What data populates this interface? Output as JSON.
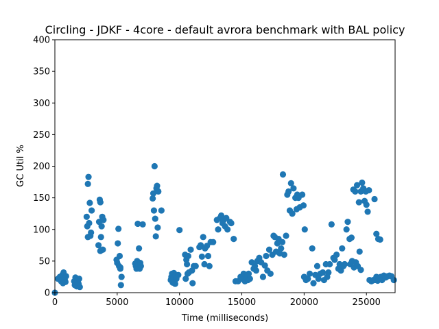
{
  "chart_data": {
    "type": "scatter",
    "title": "Circling - JDKF - 4core -  default avrora benchmark with BAL policy",
    "xlabel": "Time (milliseconds)",
    "ylabel": "GC Util %",
    "xlim": [
      0,
      27300
    ],
    "ylim": [
      0,
      400
    ],
    "xticks": [
      0,
      5000,
      10000,
      15000,
      20000,
      25000
    ],
    "yticks": [
      0,
      50,
      100,
      150,
      200,
      250,
      300,
      350,
      400
    ],
    "xtick_labels": [
      "0",
      "5000",
      "10000",
      "15000",
      "20000",
      "25000"
    ],
    "ytick_labels": [
      "0",
      "50",
      "100",
      "150",
      "200",
      "250",
      "300",
      "350",
      "400"
    ],
    "grid": false,
    "marker_color": "#1f77b4",
    "points": [
      [
        0,
        0
      ],
      [
        250,
        22
      ],
      [
        400,
        25
      ],
      [
        500,
        18
      ],
      [
        600,
        28
      ],
      [
        650,
        15
      ],
      [
        700,
        32
      ],
      [
        750,
        22
      ],
      [
        800,
        20
      ],
      [
        850,
        17
      ],
      [
        900,
        26
      ],
      [
        1550,
        18
      ],
      [
        1600,
        12
      ],
      [
        1650,
        24
      ],
      [
        1700,
        15
      ],
      [
        1750,
        10
      ],
      [
        1800,
        20
      ],
      [
        1850,
        17
      ],
      [
        1900,
        14
      ],
      [
        1950,
        22
      ],
      [
        2000,
        9
      ],
      [
        2550,
        120
      ],
      [
        2600,
        105
      ],
      [
        2650,
        172
      ],
      [
        2700,
        183
      ],
      [
        2750,
        110
      ],
      [
        2800,
        142
      ],
      [
        2850,
        90
      ],
      [
        2900,
        95
      ],
      [
        2950,
        130
      ],
      [
        2650,
        88
      ],
      [
        3500,
        75
      ],
      [
        3550,
        112
      ],
      [
        3600,
        147
      ],
      [
        3650,
        143
      ],
      [
        3700,
        88
      ],
      [
        3750,
        105
      ],
      [
        3800,
        120
      ],
      [
        3850,
        68
      ],
      [
        3900,
        115
      ],
      [
        3650,
        66
      ],
      [
        4950,
        52
      ],
      [
        5000,
        47
      ],
      [
        5050,
        78
      ],
      [
        5100,
        101
      ],
      [
        5150,
        42
      ],
      [
        5200,
        58
      ],
      [
        5250,
        38
      ],
      [
        5300,
        12
      ],
      [
        5350,
        25
      ],
      [
        5250,
        40
      ],
      [
        6450,
        46
      ],
      [
        6500,
        42
      ],
      [
        6550,
        38
      ],
      [
        6600,
        50
      ],
      [
        6650,
        109
      ],
      [
        6700,
        45
      ],
      [
        6750,
        70
      ],
      [
        6800,
        38
      ],
      [
        6850,
        47
      ],
      [
        6900,
        42
      ],
      [
        7050,
        108
      ],
      [
        7850,
        149
      ],
      [
        7900,
        157
      ],
      [
        7950,
        130
      ],
      [
        8000,
        200
      ],
      [
        8050,
        117
      ],
      [
        8100,
        89
      ],
      [
        8150,
        165
      ],
      [
        8200,
        169
      ],
      [
        8250,
        103
      ],
      [
        8300,
        160
      ],
      [
        8550,
        130
      ],
      [
        9300,
        20
      ],
      [
        9350,
        25
      ],
      [
        9400,
        30
      ],
      [
        9450,
        16
      ],
      [
        9500,
        22
      ],
      [
        9550,
        31
      ],
      [
        9600,
        18
      ],
      [
        9650,
        14
      ],
      [
        9700,
        27
      ],
      [
        9750,
        22
      ],
      [
        9900,
        28
      ],
      [
        10000,
        99
      ],
      [
        10450,
        60
      ],
      [
        10500,
        22
      ],
      [
        10550,
        52
      ],
      [
        10600,
        45
      ],
      [
        10650,
        30
      ],
      [
        10700,
        58
      ],
      [
        10750,
        32
      ],
      [
        10900,
        68
      ],
      [
        11000,
        35
      ],
      [
        11050,
        15
      ],
      [
        11150,
        42
      ],
      [
        11300,
        42
      ],
      [
        11600,
        72
      ],
      [
        11700,
        75
      ],
      [
        11800,
        57
      ],
      [
        11900,
        88
      ],
      [
        12000,
        45
      ],
      [
        12050,
        70
      ],
      [
        12200,
        74
      ],
      [
        12300,
        58
      ],
      [
        12400,
        42
      ],
      [
        12500,
        80
      ],
      [
        12700,
        80
      ],
      [
        13000,
        115
      ],
      [
        13100,
        100
      ],
      [
        13250,
        118
      ],
      [
        13350,
        122
      ],
      [
        13450,
        110
      ],
      [
        13550,
        115
      ],
      [
        13650,
        105
      ],
      [
        13750,
        118
      ],
      [
        13850,
        100
      ],
      [
        14050,
        112
      ],
      [
        14150,
        110
      ],
      [
        14350,
        85
      ],
      [
        14500,
        18
      ],
      [
        14700,
        18
      ],
      [
        14900,
        25
      ],
      [
        15000,
        22
      ],
      [
        15150,
        30
      ],
      [
        15250,
        18
      ],
      [
        15350,
        25
      ],
      [
        15450,
        27
      ],
      [
        15500,
        20
      ],
      [
        15550,
        30
      ],
      [
        15650,
        22
      ],
      [
        15800,
        48
      ],
      [
        15950,
        38
      ],
      [
        16050,
        42
      ],
      [
        16150,
        35
      ],
      [
        16250,
        50
      ],
      [
        16400,
        55
      ],
      [
        16550,
        48
      ],
      [
        16700,
        25
      ],
      [
        16850,
        43
      ],
      [
        16950,
        58
      ],
      [
        17050,
        35
      ],
      [
        17200,
        68
      ],
      [
        17300,
        30
      ],
      [
        17450,
        60
      ],
      [
        17550,
        90
      ],
      [
        17650,
        88
      ],
      [
        17750,
        65
      ],
      [
        17850,
        78
      ],
      [
        17950,
        85
      ],
      [
        18050,
        62
      ],
      [
        18150,
        70
      ],
      [
        18250,
        80
      ],
      [
        18300,
        187
      ],
      [
        18400,
        60
      ],
      [
        18550,
        90
      ],
      [
        18650,
        155
      ],
      [
        18750,
        160
      ],
      [
        18850,
        130
      ],
      [
        18950,
        173
      ],
      [
        19050,
        125
      ],
      [
        19150,
        165
      ],
      [
        19300,
        150
      ],
      [
        19450,
        155
      ],
      [
        19550,
        150
      ],
      [
        19650,
        135
      ],
      [
        19400,
        132
      ],
      [
        19850,
        155
      ],
      [
        19950,
        138
      ],
      [
        20050,
        100
      ],
      [
        20000,
        25
      ],
      [
        20150,
        20
      ],
      [
        20300,
        22
      ],
      [
        20450,
        30
      ],
      [
        20650,
        70
      ],
      [
        20750,
        15
      ],
      [
        20900,
        28
      ],
      [
        21050,
        42
      ],
      [
        21150,
        22
      ],
      [
        21300,
        30
      ],
      [
        21500,
        32
      ],
      [
        21600,
        20
      ],
      [
        21750,
        45
      ],
      [
        21850,
        25
      ],
      [
        21950,
        32
      ],
      [
        22050,
        45
      ],
      [
        22200,
        108
      ],
      [
        22350,
        55
      ],
      [
        22450,
        52
      ],
      [
        22600,
        60
      ],
      [
        22750,
        38
      ],
      [
        22850,
        45
      ],
      [
        22950,
        35
      ],
      [
        23050,
        70
      ],
      [
        23150,
        42
      ],
      [
        23250,
        45
      ],
      [
        23400,
        100
      ],
      [
        23500,
        112
      ],
      [
        23650,
        85
      ],
      [
        23800,
        87
      ],
      [
        23950,
        163
      ],
      [
        24100,
        160
      ],
      [
        24250,
        170
      ],
      [
        24400,
        143
      ],
      [
        24550,
        160
      ],
      [
        24650,
        174
      ],
      [
        24750,
        165
      ],
      [
        24850,
        145
      ],
      [
        24950,
        160
      ],
      [
        25000,
        139
      ],
      [
        25100,
        128
      ],
      [
        25200,
        162
      ],
      [
        25250,
        20
      ],
      [
        25400,
        18
      ],
      [
        25550,
        20
      ],
      [
        25650,
        20
      ],
      [
        25800,
        25
      ],
      [
        25900,
        19
      ],
      [
        26000,
        22
      ],
      [
        26150,
        25
      ],
      [
        26250,
        20
      ],
      [
        26400,
        27
      ],
      [
        26550,
        24
      ],
      [
        26700,
        26
      ],
      [
        26850,
        27
      ],
      [
        27000,
        26
      ],
      [
        27200,
        20
      ],
      [
        25650,
        148
      ],
      [
        25800,
        93
      ],
      [
        25950,
        85
      ],
      [
        26100,
        84
      ],
      [
        23700,
        45
      ],
      [
        23850,
        50
      ],
      [
        24000,
        40
      ],
      [
        24150,
        48
      ],
      [
        24300,
        42
      ],
      [
        24450,
        65
      ],
      [
        24550,
        36
      ]
    ]
  }
}
